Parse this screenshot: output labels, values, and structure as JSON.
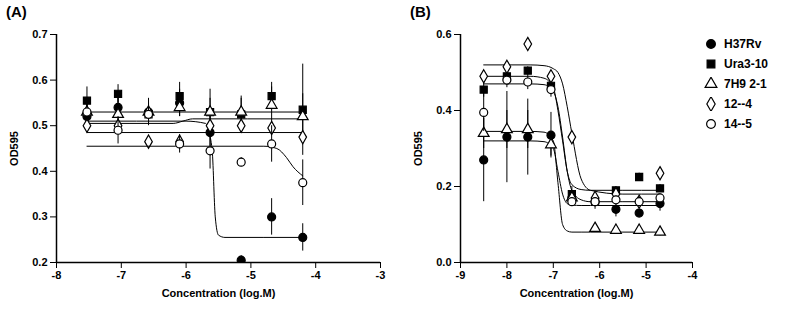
{
  "chart_data": [
    {
      "type": "scatter",
      "title": "(A)",
      "x_label": "Concentration (log.M)",
      "y_label": "OD595",
      "xlim": [
        -8,
        -3
      ],
      "xticks": [
        -8,
        -7,
        -6,
        -5,
        -4,
        -3
      ],
      "ylim": [
        0.2,
        0.7
      ],
      "yticks": [
        0.2,
        0.3,
        0.4,
        0.5,
        0.6,
        0.7
      ],
      "x": [
        -7.53,
        -7.05,
        -6.58,
        -6.1,
        -5.63,
        -5.15,
        -4.68,
        -4.2
      ],
      "series": [
        {
          "name": "H37Rv",
          "color": "#000000",
          "marker": "circle",
          "values": [
            0.52,
            0.54,
            0.53,
            0.55,
            0.485,
            0.205,
            0.3,
            0.255
          ],
          "errors": [
            0.03,
            0.02,
            0.02,
            0.03,
            0.05,
            0.01,
            0.04,
            0.03
          ],
          "fit": {
            "x": [
              -7.53,
              -6.0,
              -5.7,
              -5.6,
              -5.55,
              -5.5,
              -5.4,
              -4.2
            ],
            "values": [
              0.51,
              0.51,
              0.505,
              0.45,
              0.3,
              0.26,
              0.255,
              0.255
            ]
          }
        },
        {
          "name": "Ura3-10",
          "color": "#000000",
          "marker": "square",
          "values": [
            0.555,
            0.57,
            0.525,
            0.565,
            0.53,
            0.525,
            0.565,
            0.535
          ],
          "errors": [
            0.03,
            0.02,
            0.02,
            0.03,
            0.05,
            0.04,
            0.03,
            0.1
          ],
          "fit": {
            "x": [
              -7.53,
              -4.2
            ],
            "values": [
              0.53,
              0.53
            ]
          }
        },
        {
          "name": "7H9 2-1",
          "color": "#000000",
          "marker": "triangle-open",
          "values": [
            0.53,
            0.525,
            0.53,
            0.54,
            0.53,
            0.53,
            0.545,
            0.52
          ],
          "errors": [
            0.03,
            0.04,
            0.03,
            0.02,
            0.03,
            0.03,
            0.04,
            0.05
          ],
          "fit": {
            "x": [
              -7.53,
              -6.2,
              -6.05,
              -5.9,
              -4.2
            ],
            "values": [
              0.505,
              0.505,
              0.51,
              0.515,
              0.515
            ]
          }
        },
        {
          "name": "12--4",
          "color": "#000000",
          "marker": "diamond-open",
          "values": [
            0.5,
            0.5,
            0.465,
            0.465,
            0.5,
            0.5,
            0.495,
            0.475
          ],
          "fit": {
            "x": [
              -7.53,
              -4.2
            ],
            "values": [
              0.485,
              0.485
            ]
          }
        },
        {
          "name": "14--5",
          "color": "#000000",
          "marker": "circle-open",
          "values": [
            0.53,
            0.49,
            0.525,
            0.46,
            0.445,
            0.42,
            0.46,
            0.375
          ],
          "errors": [
            0.02,
            0.03,
            0.02,
            0.02,
            0.04,
            0.01,
            0.04,
            0.05
          ],
          "fit": {
            "x": [
              -7.53,
              -4.8,
              -4.6,
              -4.45,
              -4.35,
              -4.2
            ],
            "values": [
              0.455,
              0.455,
              0.45,
              0.43,
              0.41,
              0.39
            ]
          }
        }
      ]
    },
    {
      "type": "scatter",
      "title": "(B)",
      "x_label": "Concentration (log.M)",
      "y_label": "OD595",
      "legend": "right",
      "xlim": [
        -9,
        -4
      ],
      "xticks": [
        -9,
        -8,
        -7,
        -6,
        -5,
        -4
      ],
      "ylim": [
        0,
        0.6
      ],
      "yticks": [
        {
          "value": 0,
          "label": "0.0"
        },
        0.2,
        0.4,
        0.6
      ],
      "x": [
        -8.5,
        -8.0,
        -7.55,
        -7.05,
        -6.6,
        -6.1,
        -5.65,
        -5.15,
        -4.7
      ],
      "series": [
        {
          "name": "H37Rv",
          "color": "#000000",
          "marker": "circle",
          "values": [
            0.27,
            0.33,
            0.33,
            0.335,
            0.17,
            0.16,
            0.14,
            0.13,
            0.155
          ],
          "errors": [
            0.11,
            0.12,
            0.1,
            0.06,
            0.02,
            0.02,
            0.02,
            0.01,
            0.02
          ],
          "fit": {
            "x": [
              -8.5,
              -7.5,
              -7.2,
              -7.0,
              -6.9,
              -6.8,
              -6.7,
              -6.6,
              -6.4,
              -6.2,
              -5.5,
              -4.7
            ],
            "values": [
              0.32,
              0.32,
              0.318,
              0.3,
              0.24,
              0.18,
              0.155,
              0.151,
              0.15,
              0.15,
              0.15,
              0.15
            ]
          }
        },
        {
          "name": "Ura3-10",
          "color": "#000000",
          "marker": "square",
          "values": [
            0.455,
            0.49,
            0.505,
            0.465,
            0.18,
            0.16,
            0.19,
            0.225,
            0.195
          ],
          "errors": [
            0.02,
            0.02,
            0.01,
            0.02,
            0.02,
            0.01,
            0.01,
            0.01,
            0.01
          ],
          "fit": {
            "x": [
              -8.5,
              -7.5,
              -7.2,
              -7.0,
              -6.9,
              -6.8,
              -6.7,
              -6.6,
              -6.4,
              -6.2,
              -5.5,
              -4.7
            ],
            "values": [
              0.49,
              0.49,
              0.485,
              0.46,
              0.4,
              0.32,
              0.24,
              0.205,
              0.192,
              0.19,
              0.19,
              0.19
            ]
          }
        },
        {
          "name": "7H9 2-1",
          "color": "#000000",
          "marker": "triangle-open",
          "values": [
            0.34,
            0.35,
            0.35,
            0.31,
            0.17,
            0.09,
            0.085,
            0.085,
            0.08
          ],
          "errors": [
            0.04,
            0.05,
            0.05,
            0.03,
            0.01,
            0.01,
            0.01,
            0.01,
            0.01
          ],
          "fit": {
            "x": [
              -8.5,
              -7.5,
              -7.2,
              -7.0,
              -6.9,
              -6.8,
              -6.7,
              -6.6,
              -6.4,
              -6.2,
              -5.5,
              -4.7
            ],
            "values": [
              0.345,
              0.345,
              0.343,
              0.32,
              0.21,
              0.1,
              0.083,
              0.08,
              0.08,
              0.08,
              0.08,
              0.08
            ]
          }
        },
        {
          "name": "12--4",
          "color": "#000000",
          "marker": "diamond-open",
          "values": [
            0.49,
            0.515,
            0.575,
            0.49,
            0.33,
            0.17,
            0.18,
            0.16,
            0.235
          ],
          "fit": {
            "x": [
              -8.5,
              -7.5,
              -7.2,
              -7.0,
              -6.9,
              -6.8,
              -6.7,
              -6.6,
              -6.4,
              -6.2,
              -5.5,
              -4.7
            ],
            "values": [
              0.52,
              0.52,
              0.518,
              0.51,
              0.5,
              0.47,
              0.41,
              0.34,
              0.22,
              0.19,
              0.18,
              0.18
            ]
          }
        },
        {
          "name": "14--5",
          "color": "#000000",
          "marker": "circle-open",
          "values": [
            0.395,
            0.48,
            0.475,
            0.455,
            0.16,
            0.16,
            0.165,
            0.16,
            0.17
          ],
          "errors": [
            0.05,
            0.02,
            0.02,
            0.02,
            0.01,
            0.01,
            0.01,
            0.01,
            0.01
          ],
          "fit": {
            "x": [
              -8.5,
              -7.5,
              -7.2,
              -7.0,
              -6.9,
              -6.8,
              -6.7,
              -6.6,
              -6.4,
              -6.2,
              -5.5,
              -4.7
            ],
            "values": [
              0.47,
              0.47,
              0.468,
              0.45,
              0.41,
              0.33,
              0.24,
              0.19,
              0.165,
              0.16,
              0.16,
              0.16
            ]
          }
        }
      ]
    }
  ]
}
